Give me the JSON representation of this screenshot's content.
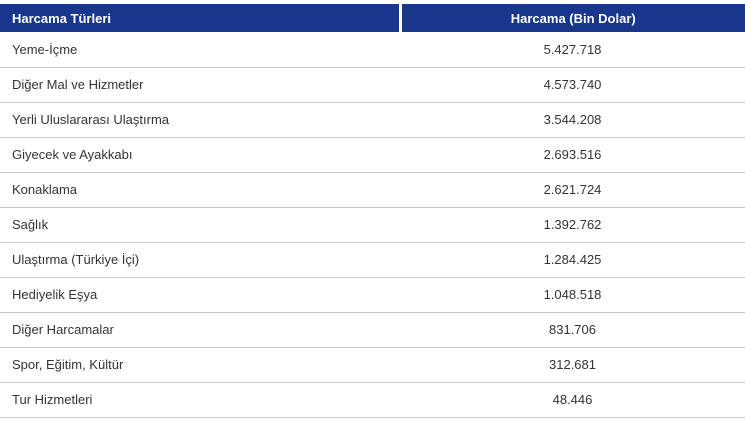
{
  "colors": {
    "header_bg": "#17368c",
    "header_text": "#ffffff",
    "row_text": "#333333",
    "row_border": "#c8c8c8"
  },
  "table": {
    "columns": [
      {
        "label": "Harcama Türleri"
      },
      {
        "label": "Harcama (Bin Dolar)"
      }
    ],
    "rows": [
      {
        "type": "Yeme-İçme",
        "value": "5.427.718"
      },
      {
        "type": "Diğer Mal ve Hizmetler",
        "value": "4.573.740"
      },
      {
        "type": "Yerli Uluslararası Ulaştırma",
        "value": "3.544.208"
      },
      {
        "type": "Giyecek ve Ayakkabı",
        "value": "2.693.516"
      },
      {
        "type": "Konaklama",
        "value": "2.621.724"
      },
      {
        "type": "Sağlık",
        "value": "1.392.762"
      },
      {
        "type": "Ulaştırma (Türkiye İçi)",
        "value": "1.284.425"
      },
      {
        "type": "Hediyelik Eşya",
        "value": "1.048.518"
      },
      {
        "type": "Diğer Harcamalar",
        "value": "831.706"
      },
      {
        "type": "Spor, Eğitim, Kültür",
        "value": "312.681"
      },
      {
        "type": "Tur Hizmetleri",
        "value": "48.446"
      }
    ]
  },
  "chart_data": {
    "type": "table",
    "title": "Harcama Türleri / Harcama (Bin Dolar)",
    "columns": [
      "Harcama Türleri",
      "Harcama (Bin Dolar)"
    ],
    "unit": "Bin Dolar",
    "categories": [
      "Yeme-İçme",
      "Diğer Mal ve Hizmetler",
      "Yerli Uluslararası Ulaştırma",
      "Giyecek ve Ayakkabı",
      "Konaklama",
      "Sağlık",
      "Ulaştırma (Türkiye İçi)",
      "Hediyelik Eşya",
      "Diğer Harcamalar",
      "Spor, Eğitim, Kültür",
      "Tur Hizmetleri"
    ],
    "values": [
      5427718,
      4573740,
      3544208,
      2693516,
      2621724,
      1392762,
      1284425,
      1048518,
      831706,
      312681,
      48446
    ]
  }
}
